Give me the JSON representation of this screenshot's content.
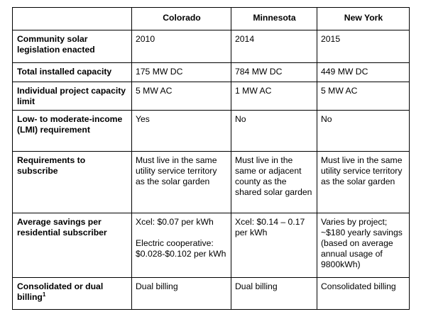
{
  "headers": [
    "",
    "Colorado",
    "Minnesota",
    "New York"
  ],
  "rows": [
    {
      "label": "Community solar legislation enacted",
      "colorado": "2010",
      "minnesota": "2014",
      "newyork": "2015"
    },
    {
      "label": "Total installed capacity",
      "colorado": "175 MW DC",
      "minnesota": "784 MW DC",
      "newyork": "449 MW DC"
    },
    {
      "label": "Individual project capacity limit",
      "colorado": "5 MW AC",
      "minnesota": "1 MW AC",
      "newyork": "5 MW AC"
    },
    {
      "label": "Low- to moderate-income (LMI) requirement",
      "colorado": "Yes",
      "minnesota": "No",
      "newyork": "No"
    },
    {
      "label": "Requirements to subscribe",
      "colorado": "Must live in the same utility service territory as the solar garden",
      "minnesota": "Must live in the same or adjacent county as the shared solar garden",
      "newyork": "Must live in the same utility service territory as the solar garden"
    },
    {
      "label": "Average savings per residential subscriber",
      "colorado": "Xcel: $0.07 per kWh",
      "colorado_extra": "Electric cooperative: $0.028-$0.102 per kWh",
      "minnesota": "Xcel: $0.14 – 0.17 per kWh",
      "newyork": "Varies by project; ~$180 yearly savings (based on average annual usage of 9800kWh)"
    },
    {
      "label": "Consolidated or dual billing",
      "label_sup": "1",
      "colorado": "Dual billing",
      "minnesota": "Dual billing",
      "newyork": "Consolidated billing"
    }
  ]
}
